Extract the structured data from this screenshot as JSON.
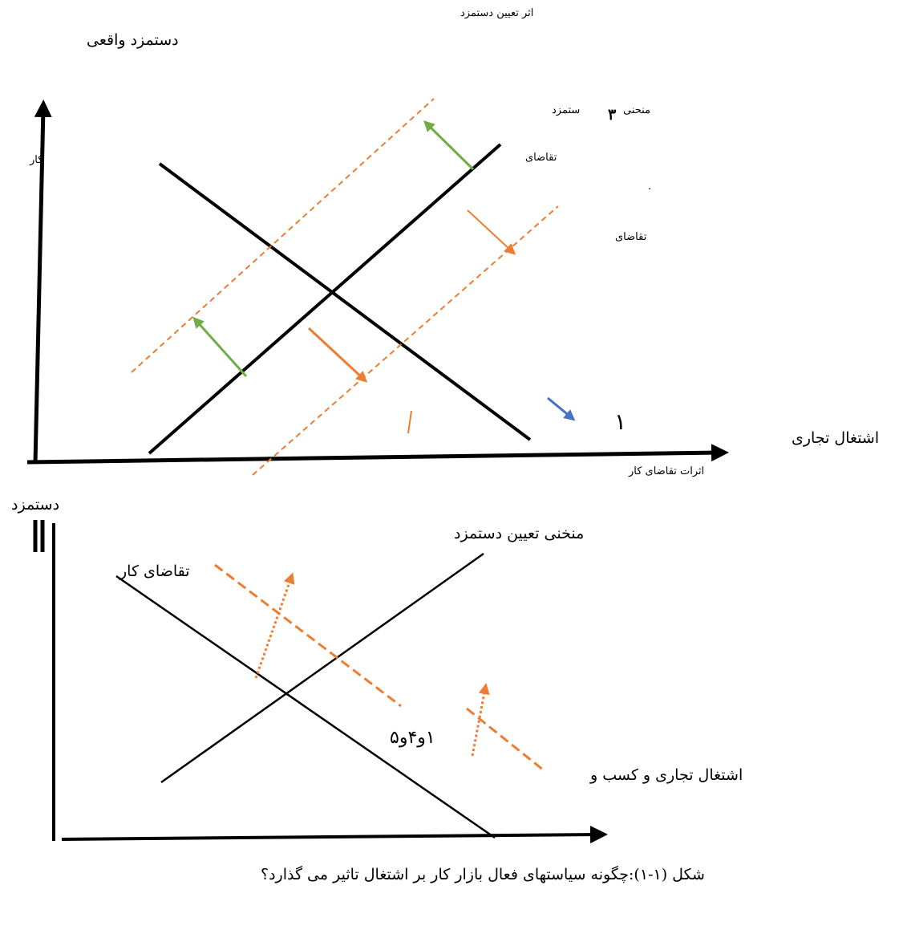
{
  "colors": {
    "axis": "#000000",
    "curve": "#000000",
    "dashed": "#ed7d31",
    "green_arrow": "#70ad47",
    "orange_arrow": "#ed7d31",
    "blue_arrow": "#4472c4"
  },
  "top": {
    "heading": "اثر تعیین دستمزد",
    "y_axis_title": "دستمزد واقعی",
    "y_axis_sub": "کار",
    "curve_label_a": "منحنی",
    "curve_number": "۳",
    "curve_label_b": "ستمزد",
    "demand_label_1": "تقاضای",
    "dot_mark": ".",
    "demand_label_2": "تقاضای",
    "marker_1": "١",
    "right_label": "اشتغال تجاری",
    "x_axis_label": "اثرات تقاضای کار"
  },
  "bottom": {
    "y_axis_label": "دستمزد",
    "supply_label": "منخنی تعیین دستمزد",
    "demand_label": "تقاضای کار",
    "center_label": "۱و۴و۵",
    "right_label": "اشتغال تجاری و کسب و",
    "caption": "شکل (۱-۱):چگونه سیاستهای فعال بازار کار بر اشتغال تاثیر می گذارد؟"
  }
}
